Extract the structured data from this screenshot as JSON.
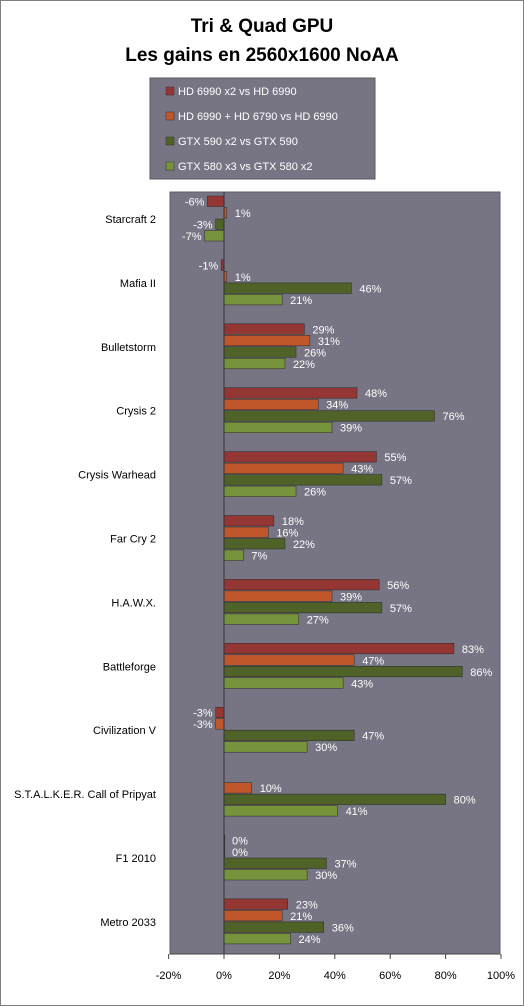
{
  "title_line1": "Tri & Quad GPU",
  "title_line2": "Les gains en 2560x1600 NoAA",
  "chart_data": {
    "type": "bar",
    "orientation": "horizontal",
    "title": "Tri & Quad GPU Les gains en 2560x1600 NoAA",
    "categories": [
      "Starcraft 2",
      "Mafia II",
      "Bulletstorm",
      "Crysis 2",
      "Crysis Warhead",
      "Far Cry 2",
      "H.A.W.X.",
      "Battleforge",
      "Civilization V",
      "S.T.A.L.K.E.R. Call of Pripyat",
      "F1 2010",
      "Metro 2033"
    ],
    "series": [
      {
        "name": "HD 6990  x2 vs HD 6990",
        "color": "#943634",
        "values": [
          -6,
          -1,
          29,
          48,
          55,
          18,
          56,
          83,
          -3,
          null,
          0,
          23
        ]
      },
      {
        "name": "HD 6990  + HD 6790  vs HD 6990",
        "color": "#c0572b",
        "values": [
          1,
          1,
          31,
          34,
          43,
          16,
          39,
          47,
          -3,
          10,
          0,
          21
        ]
      },
      {
        "name": "GTX 590 x2 vs GTX 590",
        "color": "#4f6228",
        "values": [
          -3,
          46,
          26,
          76,
          57,
          22,
          57,
          86,
          47,
          80,
          37,
          36
        ]
      },
      {
        "name": "GTX 580 x3 vs GTX 580  x2",
        "color": "#77933c",
        "values": [
          -7,
          21,
          22,
          39,
          26,
          7,
          27,
          43,
          30,
          41,
          30,
          24
        ]
      }
    ],
    "xlim": [
      -20,
      100
    ],
    "xticks": [
      "-20%",
      "0%",
      "20%",
      "40%",
      "60%",
      "80%",
      "100%"
    ],
    "value_suffix": "%",
    "plot_background": "#777483",
    "grid": false,
    "legend_position": "top"
  }
}
